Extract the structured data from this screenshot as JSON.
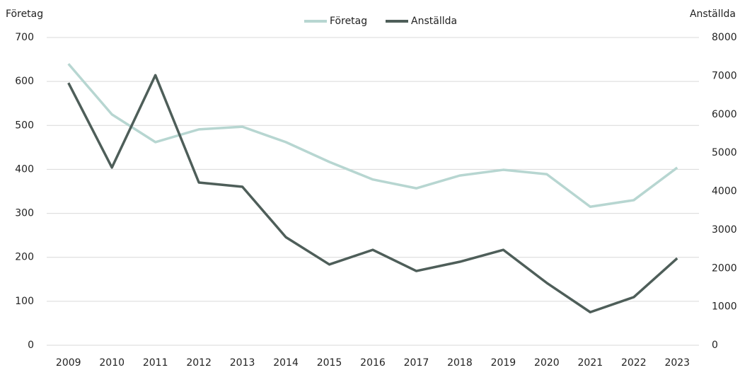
{
  "chart_data": {
    "type": "line",
    "y_label": "Företag",
    "y2_label": "Anställda",
    "categories": [
      "2009",
      "2010",
      "2011",
      "2012",
      "2013",
      "2014",
      "2015",
      "2016",
      "2017",
      "2018",
      "2019",
      "2020",
      "2021",
      "2022",
      "2023"
    ],
    "series": [
      {
        "name": "Företag",
        "color": "#b7d6d1",
        "values": [
          640,
          525,
          462,
          491,
          497,
          462,
          417,
          377,
          357,
          386,
          399,
          389,
          315,
          330,
          404
        ]
      },
      {
        "name": "Anställda",
        "color": "#4e5e59",
        "axis": "y2",
        "values": [
          6820,
          4620,
          7020,
          4230,
          4120,
          2810,
          2100,
          2480,
          1930,
          2170,
          2480,
          1620,
          860,
          1250,
          2260
        ]
      }
    ],
    "ylim": [
      0,
      700
    ],
    "yticks": [
      0,
      100,
      200,
      300,
      400,
      500,
      600,
      700
    ],
    "y2lim": [
      0,
      8000
    ],
    "y2ticks": [
      0,
      1000,
      2000,
      3000,
      4000,
      5000,
      6000,
      7000,
      8000
    ],
    "grid": true,
    "legend": "top"
  }
}
